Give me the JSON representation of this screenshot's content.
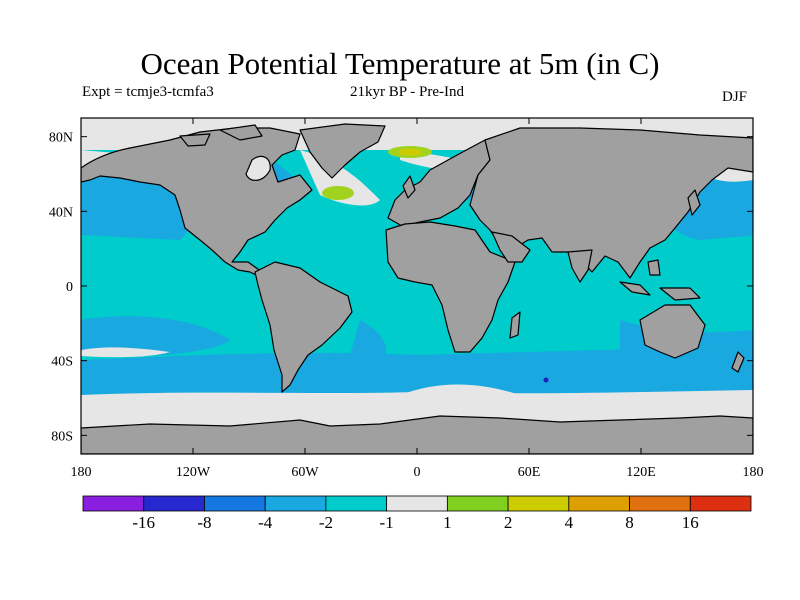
{
  "title": "Ocean Potential Temperature at 5m (in C)",
  "left_subtitle": "Expt = tcmje3-tcmfa3",
  "center_subtitle": "21kyr BP - Pre-Ind",
  "right_subtitle": "DJF",
  "axes": {
    "x_ticks": [
      "180",
      "120W",
      "60W",
      "0",
      "60E",
      "120E",
      "180"
    ],
    "y_ticks": [
      "80N",
      "40N",
      "0",
      "40S",
      "80S"
    ]
  },
  "colors": {
    "land": "#a0a0a0",
    "ocean_main": "#00cccc",
    "ocean_cooler": "#19a8e0",
    "sea_ice_band": "#e6e6e6",
    "warm_patch": "#a0d21e",
    "warm_patch_2": "#cccc00",
    "dark_spot": "#2020c0"
  },
  "colorbar": {
    "colors": [
      "#8a1ee0",
      "#2828d0",
      "#1478e0",
      "#19a8e0",
      "#00cccc",
      "#e6e6e6",
      "#80d020",
      "#cccc00",
      "#dda000",
      "#e07010",
      "#dd3010"
    ],
    "labels": [
      "-16",
      "-8",
      "-4",
      "-2",
      "-1",
      "1",
      "2",
      "4",
      "8",
      "16"
    ]
  }
}
